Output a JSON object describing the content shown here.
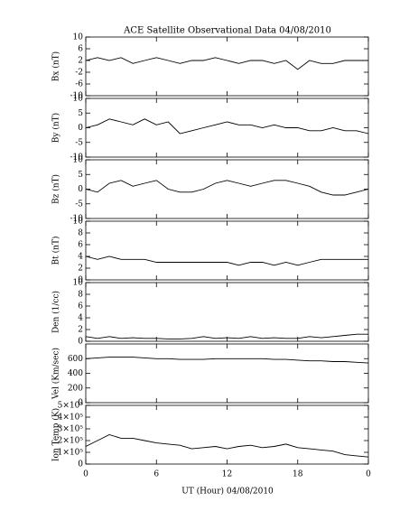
{
  "chart_data": [
    {
      "type": "line",
      "title": "ACE Satellite Observational Data   04/08/2010",
      "ylabel": "Bx (nT)",
      "color": "#000000",
      "x": [
        0,
        1,
        2,
        3,
        4,
        5,
        6,
        7,
        8,
        9,
        10,
        11,
        12,
        13,
        14,
        15,
        16,
        17,
        18,
        19,
        20,
        21,
        22,
        23,
        24
      ],
      "values": [
        2,
        3,
        2,
        3,
        1,
        2,
        3,
        2,
        1,
        2,
        2,
        3,
        2,
        1,
        2,
        2,
        1,
        2,
        -1,
        2,
        1,
        1,
        2,
        2,
        2
      ],
      "ylim": [
        -10,
        10
      ],
      "yticks": [
        -10,
        -6,
        -2,
        2,
        6,
        10
      ]
    },
    {
      "type": "line",
      "ylabel": "By (nT)",
      "color": "#000000",
      "x": [
        0,
        1,
        2,
        3,
        4,
        5,
        6,
        7,
        8,
        9,
        10,
        11,
        12,
        13,
        14,
        15,
        16,
        17,
        18,
        19,
        20,
        21,
        22,
        23,
        24
      ],
      "values": [
        0,
        1,
        3,
        2,
        1,
        3,
        1,
        2,
        -2,
        -1,
        0,
        1,
        2,
        1,
        1,
        0,
        1,
        0,
        0,
        -1,
        -1,
        0,
        -1,
        -1,
        -2
      ],
      "ylim": [
        -10,
        10
      ],
      "yticks": [
        -10,
        -5,
        0,
        5,
        10
      ]
    },
    {
      "type": "line",
      "ylabel": "Bz (nT)",
      "color": "#000000",
      "x": [
        0,
        1,
        2,
        3,
        4,
        5,
        6,
        7,
        8,
        9,
        10,
        11,
        12,
        13,
        14,
        15,
        16,
        17,
        18,
        19,
        20,
        21,
        22,
        23,
        24
      ],
      "values": [
        0,
        -1,
        2,
        3,
        1,
        2,
        3,
        0,
        -1,
        -1,
        0,
        2,
        3,
        2,
        1,
        2,
        3,
        3,
        2,
        1,
        -1,
        -2,
        -2,
        -1,
        0
      ],
      "ylim": [
        -10,
        10
      ],
      "yticks": [
        -10,
        -5,
        0,
        5,
        10
      ]
    },
    {
      "type": "line",
      "ylabel": "Bt (nT)",
      "color": "#000000",
      "x": [
        0,
        1,
        2,
        3,
        4,
        5,
        6,
        7,
        8,
        9,
        10,
        11,
        12,
        13,
        14,
        15,
        16,
        17,
        18,
        19,
        20,
        21,
        22,
        23,
        24
      ],
      "values": [
        4,
        3.5,
        4,
        3.5,
        3.5,
        3.5,
        3,
        3,
        3,
        3,
        3,
        3,
        3,
        2.5,
        3,
        3,
        2.5,
        3,
        2.5,
        3,
        3.5,
        3.5,
        3.5,
        3.5,
        3.5
      ],
      "ylim": [
        0,
        10
      ],
      "yticks": [
        0,
        2,
        4,
        6,
        8,
        10
      ]
    },
    {
      "type": "line",
      "ylabel": "Den (1/cc)",
      "color": "#000000",
      "x": [
        0,
        1,
        2,
        3,
        4,
        5,
        6,
        7,
        8,
        9,
        10,
        11,
        12,
        13,
        14,
        15,
        16,
        17,
        18,
        19,
        20,
        21,
        22,
        23,
        24
      ],
      "values": [
        0.8,
        0.5,
        0.8,
        0.5,
        0.6,
        0.5,
        0.5,
        0.4,
        0.4,
        0.5,
        0.8,
        0.5,
        0.6,
        0.5,
        0.8,
        0.5,
        0.6,
        0.5,
        0.5,
        0.8,
        0.6,
        0.8,
        1,
        1.2,
        1.2
      ],
      "ylim": [
        0,
        10
      ],
      "yticks": [
        0,
        2,
        4,
        6,
        8,
        10
      ]
    },
    {
      "type": "line",
      "ylabel": "Vel (Km/sec)",
      "color": "#000000",
      "x": [
        0,
        1,
        2,
        3,
        4,
        5,
        6,
        7,
        8,
        9,
        10,
        11,
        12,
        13,
        14,
        15,
        16,
        17,
        18,
        19,
        20,
        21,
        22,
        23,
        24
      ],
      "values": [
        600,
        610,
        620,
        620,
        620,
        610,
        600,
        600,
        590,
        590,
        590,
        600,
        600,
        600,
        600,
        600,
        590,
        590,
        580,
        570,
        570,
        560,
        560,
        550,
        540
      ],
      "ylim": [
        0,
        800
      ],
      "yticks": [
        0,
        200,
        400,
        600
      ]
    },
    {
      "type": "line",
      "ylabel": "Ion Temp (K)",
      "xlabel": "UT (Hour)   04/08/2010",
      "color": "#000000",
      "x": [
        0,
        1,
        2,
        3,
        4,
        5,
        6,
        7,
        8,
        9,
        10,
        11,
        12,
        13,
        14,
        15,
        16,
        17,
        18,
        19,
        20,
        21,
        22,
        23,
        24
      ],
      "values": [
        150000,
        200000,
        250000,
        220000,
        220000,
        200000,
        180000,
        170000,
        160000,
        130000,
        140000,
        150000,
        130000,
        150000,
        160000,
        140000,
        150000,
        170000,
        140000,
        130000,
        120000,
        110000,
        80000,
        70000,
        60000
      ],
      "ylim": [
        0,
        500000
      ],
      "yticks": [
        0,
        {
          "value": 100000,
          "label": "1×10⁵"
        },
        {
          "value": 200000,
          "label": "2×10⁵"
        },
        {
          "value": 300000,
          "label": "3×10⁵"
        },
        {
          "value": 400000,
          "label": "4×10⁵"
        },
        {
          "value": 500000,
          "label": "5×10⁵"
        }
      ],
      "xlim": [
        0,
        24
      ],
      "xticks": [
        0,
        6,
        12,
        18,
        {
          "value": 24,
          "label": "0"
        }
      ]
    }
  ]
}
